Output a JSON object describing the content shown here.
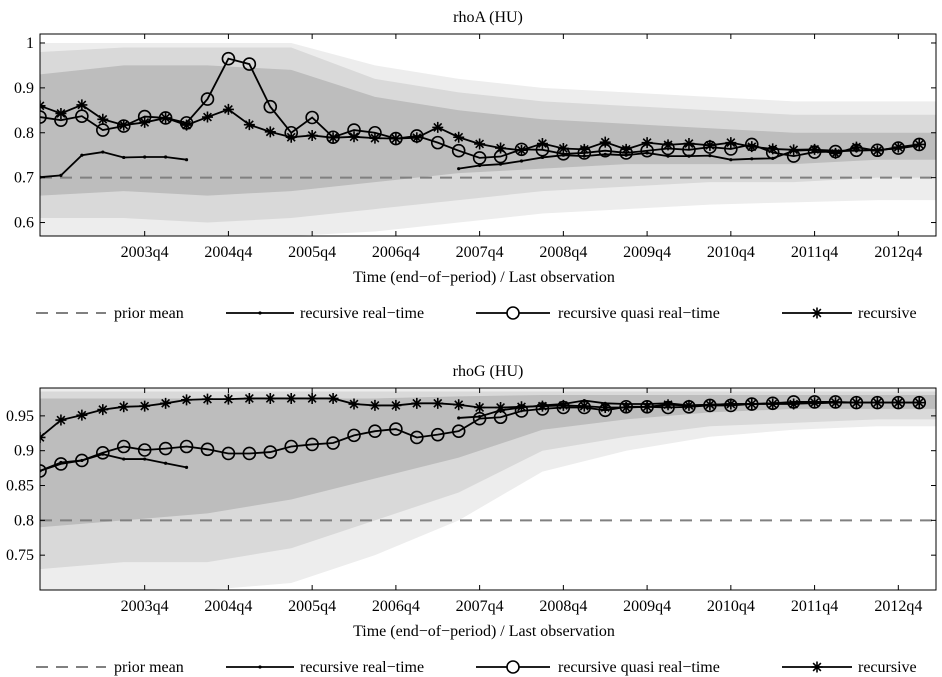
{
  "chart_data": [
    {
      "type": "line",
      "title": "rhoA (HU)",
      "xlabel": "Time (end−of−period) / Last observation",
      "ylabel": "",
      "xlim": [
        2002.5,
        2013.2
      ],
      "ylim": [
        0.57,
        1.02
      ],
      "yticks": [
        "0.6",
        "0.7",
        "0.8",
        "0.9",
        "1"
      ],
      "xticks": [
        "2003q4",
        "2004q4",
        "2005q4",
        "2006q4",
        "2007q4",
        "2008q4",
        "2009q4",
        "2010q4",
        "2011q4",
        "2012q4"
      ],
      "legend": [
        "prior mean",
        "recursive real−time",
        "recursive quasi real−time",
        "recursive"
      ],
      "legend_position": "bottom",
      "prior_mean": 0.7,
      "bands": {
        "x": [
          2002.5,
          2003.5,
          2004.5,
          2005.5,
          2006.5,
          2007.5,
          2008.5,
          2009.5,
          2010.5,
          2011.5,
          2012.5,
          2013.2
        ],
        "outer_lo": [
          0.57,
          0.57,
          0.57,
          0.57,
          0.58,
          0.6,
          0.62,
          0.63,
          0.64,
          0.645,
          0.65,
          0.65
        ],
        "outer_hi": [
          1.0,
          1.0,
          1.0,
          1.0,
          0.95,
          0.92,
          0.9,
          0.89,
          0.88,
          0.87,
          0.87,
          0.87
        ],
        "mid_lo": [
          0.61,
          0.61,
          0.6,
          0.61,
          0.63,
          0.65,
          0.67,
          0.68,
          0.69,
          0.69,
          0.7,
          0.7
        ],
        "mid_hi": [
          0.98,
          0.99,
          0.99,
          0.99,
          0.92,
          0.89,
          0.87,
          0.86,
          0.85,
          0.84,
          0.84,
          0.84
        ],
        "in_lo": [
          0.66,
          0.67,
          0.66,
          0.67,
          0.69,
          0.71,
          0.72,
          0.73,
          0.73,
          0.73,
          0.74,
          0.74
        ],
        "in_hi": [
          0.93,
          0.95,
          0.95,
          0.94,
          0.88,
          0.85,
          0.83,
          0.82,
          0.81,
          0.8,
          0.8,
          0.8
        ]
      },
      "series": [
        {
          "name": "recursive real−time",
          "segments": [
            {
              "x": [
                2002.5,
                2002.75,
                2003.0,
                2003.25,
                2003.5,
                2003.75,
                2004.0,
                2004.25
              ],
              "y": [
                0.701,
                0.705,
                0.75,
                0.757,
                0.745,
                0.746,
                0.746,
                0.74
              ]
            },
            {
              "x": [
                2007.5,
                2007.75,
                2008.0,
                2008.25,
                2008.5,
                2008.75,
                2009.0,
                2009.25,
                2009.5,
                2009.75,
                2010.0,
                2010.25,
                2010.5,
                2010.75,
                2011.0,
                2011.25,
                2011.5,
                2011.75,
                2012.0,
                2012.25,
                2012.5,
                2012.75,
                2013.0
              ],
              "y": [
                0.72,
                0.727,
                0.73,
                0.737,
                0.745,
                0.75,
                0.748,
                0.752,
                0.75,
                0.755,
                0.748,
                0.748,
                0.749,
                0.74,
                0.742,
                0.743,
                0.76,
                0.762,
                0.76,
                0.76,
                0.762,
                0.765,
                0.772
              ]
            }
          ]
        },
        {
          "name": "recursive quasi real−time",
          "x": [
            2002.5,
            2002.75,
            2003.0,
            2003.25,
            2003.5,
            2003.75,
            2004.0,
            2004.25,
            2004.5,
            2004.75,
            2005.0,
            2005.25,
            2005.5,
            2005.75,
            2006.0,
            2006.25,
            2006.5,
            2006.75,
            2007.0,
            2007.25,
            2007.5,
            2007.75,
            2008.0,
            2008.25,
            2008.5,
            2008.75,
            2009.0,
            2009.25,
            2009.5,
            2009.75,
            2010.0,
            2010.25,
            2010.5,
            2010.75,
            2011.0,
            2011.25,
            2011.5,
            2011.75,
            2012.0,
            2012.25,
            2012.5,
            2012.75,
            2013.0
          ],
          "y": [
            0.835,
            0.828,
            0.837,
            0.806,
            0.815,
            0.836,
            0.833,
            0.822,
            0.875,
            0.965,
            0.953,
            0.858,
            0.8,
            0.834,
            0.79,
            0.806,
            0.8,
            0.787,
            0.793,
            0.778,
            0.76,
            0.744,
            0.747,
            0.763,
            0.762,
            0.753,
            0.755,
            0.76,
            0.755,
            0.76,
            0.765,
            0.762,
            0.768,
            0.764,
            0.774,
            0.756,
            0.748,
            0.757,
            0.758,
            0.761,
            0.761,
            0.766,
            0.774
          ]
        },
        {
          "name": "recursive",
          "x": [
            2002.5,
            2002.75,
            2003.0,
            2003.25,
            2003.5,
            2003.75,
            2004.0,
            2004.25,
            2004.5,
            2004.75,
            2005.0,
            2005.25,
            2005.5,
            2005.75,
            2006.0,
            2006.25,
            2006.5,
            2006.75,
            2007.0,
            2007.25,
            2007.5,
            2007.75,
            2008.0,
            2008.25,
            2008.5,
            2008.75,
            2009.0,
            2009.25,
            2009.5,
            2009.75,
            2010.0,
            2010.25,
            2010.5,
            2010.75,
            2011.0,
            2011.25,
            2011.5,
            2011.75,
            2012.0,
            2012.25,
            2012.5,
            2012.75,
            2013.0
          ],
          "y": [
            0.86,
            0.843,
            0.862,
            0.83,
            0.817,
            0.823,
            0.833,
            0.817,
            0.835,
            0.852,
            0.818,
            0.802,
            0.79,
            0.794,
            0.789,
            0.791,
            0.788,
            0.787,
            0.789,
            0.812,
            0.79,
            0.775,
            0.766,
            0.761,
            0.776,
            0.765,
            0.763,
            0.779,
            0.763,
            0.778,
            0.773,
            0.776,
            0.772,
            0.778,
            0.769,
            0.764,
            0.762,
            0.763,
            0.754,
            0.768,
            0.76,
            0.768,
            0.774
          ]
        }
      ]
    },
    {
      "type": "line",
      "title": "rhoG (HU)",
      "xlabel": "Time (end−of−period) / Last observation",
      "ylabel": "",
      "xlim": [
        2002.5,
        2013.2
      ],
      "ylim": [
        0.7,
        0.99
      ],
      "yticks": [
        "0.75",
        "0.8",
        "0.85",
        "0.9",
        "0.95"
      ],
      "xticks": [
        "2003q4",
        "2004q4",
        "2005q4",
        "2006q4",
        "2007q4",
        "2008q4",
        "2009q4",
        "2010q4",
        "2011q4",
        "2012q4"
      ],
      "legend": [
        "prior mean",
        "recursive real−time",
        "recursive quasi real−time",
        "recursive"
      ],
      "legend_position": "bottom",
      "prior_mean": 0.8,
      "bands": {
        "x": [
          2002.5,
          2003.5,
          2004.5,
          2005.5,
          2006.5,
          2007.5,
          2008.5,
          2009.5,
          2010.5,
          2011.5,
          2012.5,
          2013.2
        ],
        "outer_lo": [
          0.7,
          0.7,
          0.7,
          0.71,
          0.75,
          0.8,
          0.87,
          0.9,
          0.92,
          0.93,
          0.935,
          0.935
        ],
        "outer_hi": [
          0.99,
          0.99,
          0.99,
          0.99,
          0.99,
          0.99,
          0.99,
          0.99,
          0.99,
          0.99,
          0.99,
          0.99
        ],
        "mid_lo": [
          0.73,
          0.74,
          0.74,
          0.76,
          0.8,
          0.84,
          0.9,
          0.92,
          0.935,
          0.94,
          0.945,
          0.945
        ],
        "mid_hi": [
          0.985,
          0.985,
          0.985,
          0.985,
          0.985,
          0.985,
          0.985,
          0.985,
          0.985,
          0.985,
          0.985,
          0.985
        ],
        "in_lo": [
          0.79,
          0.8,
          0.81,
          0.83,
          0.86,
          0.89,
          0.93,
          0.945,
          0.955,
          0.96,
          0.96,
          0.96
        ],
        "in_hi": [
          0.975,
          0.975,
          0.975,
          0.975,
          0.975,
          0.978,
          0.98,
          0.98,
          0.98,
          0.98,
          0.98,
          0.98
        ]
      },
      "series": [
        {
          "name": "recursive real−time",
          "segments": [
            {
              "x": [
                2002.5,
                2002.75,
                2003.0,
                2003.25,
                2003.5,
                2003.75,
                2004.0,
                2004.25
              ],
              "y": [
                0.871,
                0.883,
                0.886,
                0.895,
                0.888,
                0.888,
                0.882,
                0.876
              ]
            },
            {
              "x": [
                2007.5,
                2007.75,
                2008.0,
                2008.25,
                2008.5,
                2008.75,
                2009.0,
                2009.25,
                2009.5,
                2009.75,
                2010.0,
                2010.25,
                2010.5,
                2010.75,
                2011.0,
                2011.25,
                2011.5,
                2011.75,
                2012.0,
                2012.25,
                2012.5,
                2012.75,
                2013.0
              ],
              "y": [
                0.947,
                0.949,
                0.958,
                0.962,
                0.965,
                0.967,
                0.972,
                0.968,
                0.967,
                0.967,
                0.968,
                0.965,
                0.966,
                0.967,
                0.967,
                0.968,
                0.968,
                0.968,
                0.969,
                0.969,
                0.969,
                0.969,
                0.969
              ]
            }
          ]
        },
        {
          "name": "recursive quasi real−time",
          "x": [
            2002.5,
            2002.75,
            2003.0,
            2003.25,
            2003.5,
            2003.75,
            2004.0,
            2004.25,
            2004.5,
            2004.75,
            2005.0,
            2005.25,
            2005.5,
            2005.75,
            2006.0,
            2006.25,
            2006.5,
            2006.75,
            2007.0,
            2007.25,
            2007.5,
            2007.75,
            2008.0,
            2008.25,
            2008.5,
            2008.75,
            2009.0,
            2009.25,
            2009.5,
            2009.75,
            2010.0,
            2010.25,
            2010.5,
            2010.75,
            2011.0,
            2011.25,
            2011.5,
            2011.75,
            2012.0,
            2012.25,
            2012.5,
            2012.75,
            2013.0
          ],
          "y": [
            0.871,
            0.881,
            0.886,
            0.897,
            0.906,
            0.901,
            0.903,
            0.906,
            0.902,
            0.896,
            0.896,
            0.898,
            0.906,
            0.909,
            0.911,
            0.922,
            0.928,
            0.931,
            0.919,
            0.923,
            0.928,
            0.946,
            0.948,
            0.957,
            0.96,
            0.962,
            0.962,
            0.958,
            0.963,
            0.963,
            0.962,
            0.963,
            0.965,
            0.965,
            0.967,
            0.968,
            0.97,
            0.97,
            0.97,
            0.969,
            0.969,
            0.969,
            0.969
          ]
        },
        {
          "name": "recursive",
          "x": [
            2002.5,
            2002.75,
            2003.0,
            2003.25,
            2003.5,
            2003.75,
            2004.0,
            2004.25,
            2004.5,
            2004.75,
            2005.0,
            2005.25,
            2005.5,
            2005.75,
            2006.0,
            2006.25,
            2006.5,
            2006.75,
            2007.0,
            2007.25,
            2007.5,
            2007.75,
            2008.0,
            2008.25,
            2008.5,
            2008.75,
            2009.0,
            2009.25,
            2009.5,
            2009.75,
            2010.0,
            2010.25,
            2010.5,
            2010.75,
            2011.0,
            2011.25,
            2011.5,
            2011.75,
            2012.0,
            2012.25,
            2012.5,
            2012.75,
            2013.0
          ],
          "y": [
            0.919,
            0.944,
            0.951,
            0.959,
            0.963,
            0.964,
            0.968,
            0.973,
            0.974,
            0.974,
            0.975,
            0.975,
            0.975,
            0.975,
            0.975,
            0.967,
            0.965,
            0.965,
            0.968,
            0.968,
            0.966,
            0.962,
            0.962,
            0.963,
            0.964,
            0.965,
            0.964,
            0.962,
            0.962,
            0.963,
            0.966,
            0.965,
            0.966,
            0.967,
            0.967,
            0.967,
            0.967,
            0.969,
            0.969,
            0.969,
            0.969,
            0.969,
            0.969
          ]
        }
      ]
    }
  ],
  "colors": {
    "band_outer": "#ededed",
    "band_mid": "#d9d9d9",
    "band_inner": "#bdbdbd",
    "prior_mean": "#808080",
    "series": "#000000"
  }
}
